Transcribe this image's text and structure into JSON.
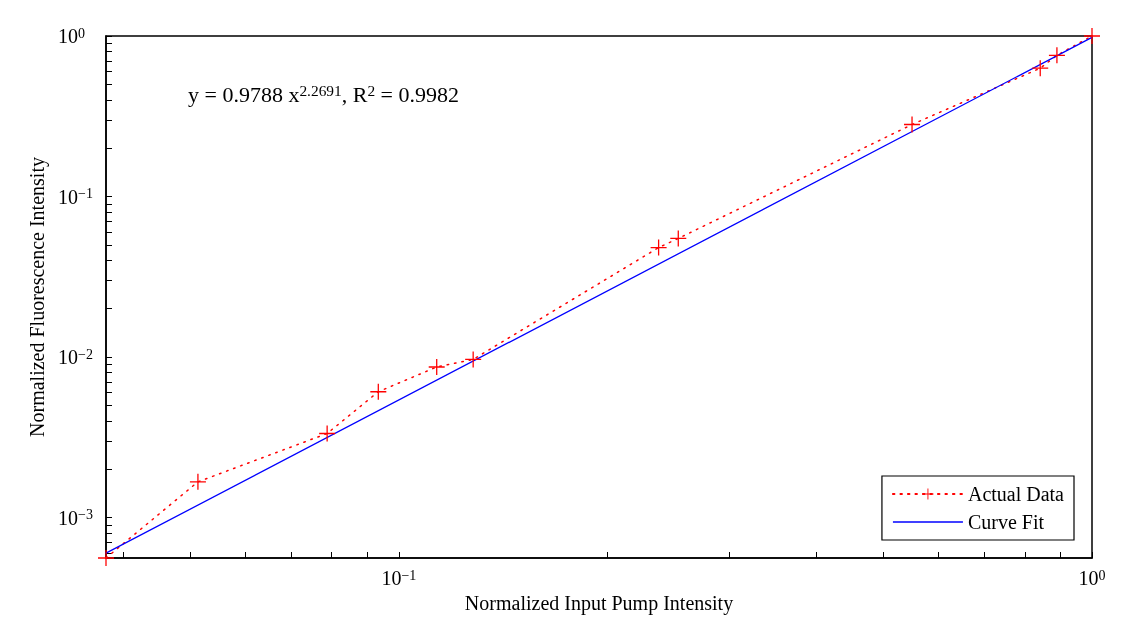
{
  "chart_data": {
    "type": "line",
    "xlabel": "Normalized Input Pump Intensity",
    "ylabel": "Normalized Fluorescence Intensity",
    "annotations": [
      "y = 0.9788 x$^{2.2691}$, R$^{2}$ = 0.9982"
    ],
    "log": "xy",
    "xlim": [
      0.0378,
      1
    ],
    "ylim": [
      0.00056,
      1
    ],
    "xticks": [
      {
        "value": 0.04,
        "label": null
      },
      {
        "value": 0.05,
        "label": null
      },
      {
        "value": 0.06,
        "label": null
      },
      {
        "value": 0.07,
        "label": null
      },
      {
        "value": 0.08,
        "label": null
      },
      {
        "value": 0.09,
        "label": null
      },
      {
        "value": 0.1,
        "label": "10$^{−1}$"
      },
      {
        "value": 0.2,
        "label": null
      },
      {
        "value": 0.3,
        "label": null
      },
      {
        "value": 0.4,
        "label": null
      },
      {
        "value": 0.5,
        "label": null
      },
      {
        "value": 0.6,
        "label": null
      },
      {
        "value": 0.7,
        "label": null
      },
      {
        "value": 0.8,
        "label": null
      },
      {
        "value": 0.9,
        "label": null
      },
      {
        "value": 1,
        "label": "10$^{0}$"
      }
    ],
    "yticks": [
      {
        "value": 0.0006,
        "label": null
      },
      {
        "value": 0.0007,
        "label": null
      },
      {
        "value": 0.0008,
        "label": null
      },
      {
        "value": 0.0009,
        "label": null
      },
      {
        "value": 0.001,
        "label": "10$^{−3}$"
      },
      {
        "value": 0.002,
        "label": null
      },
      {
        "value": 0.003,
        "label": null
      },
      {
        "value": 0.004,
        "label": null
      },
      {
        "value": 0.005,
        "label": null
      },
      {
        "value": 0.006,
        "label": null
      },
      {
        "value": 0.007,
        "label": null
      },
      {
        "value": 0.008,
        "label": null
      },
      {
        "value": 0.009,
        "label": null
      },
      {
        "value": 0.01,
        "label": "10$^{−2}$"
      },
      {
        "value": 0.02,
        "label": null
      },
      {
        "value": 0.03,
        "label": null
      },
      {
        "value": 0.04,
        "label": null
      },
      {
        "value": 0.05,
        "label": null
      },
      {
        "value": 0.06,
        "label": null
      },
      {
        "value": 0.07,
        "label": null
      },
      {
        "value": 0.08,
        "label": null
      },
      {
        "value": 0.09,
        "label": null
      },
      {
        "value": 0.1,
        "label": "10$^{−1}$"
      },
      {
        "value": 0.2,
        "label": null
      },
      {
        "value": 0.3,
        "label": null
      },
      {
        "value": 0.4,
        "label": null
      },
      {
        "value": 0.5,
        "label": null
      },
      {
        "value": 0.6,
        "label": null
      },
      {
        "value": 0.7,
        "label": null
      },
      {
        "value": 0.8,
        "label": null
      },
      {
        "value": 0.9,
        "label": null
      },
      {
        "value": 1,
        "label": "10$^{0}$"
      }
    ],
    "grid": false,
    "legend": "bottom right",
    "series": [
      {
        "name": "Actual Data",
        "color": "#ff0000",
        "marker": "cross",
        "line_style": "dotted",
        "x": [
          0.0378,
          0.0513,
          0.0788,
          0.0934,
          0.1134,
          0.128,
          0.237,
          0.253,
          0.55,
          0.842,
          0.89,
          1
        ],
        "values": [
          0.00056,
          0.00167,
          0.00334,
          0.00608,
          0.00867,
          0.00967,
          0.0481,
          0.0548,
          0.281,
          0.63,
          0.758,
          1
        ]
      },
      {
        "name": "Curve Fit",
        "color": "#0000ff",
        "marker": "none",
        "line_style": "solid",
        "x": [
          0.0378,
          1
        ],
        "values": [
          0.0006,
          0.98
        ]
      }
    ]
  }
}
